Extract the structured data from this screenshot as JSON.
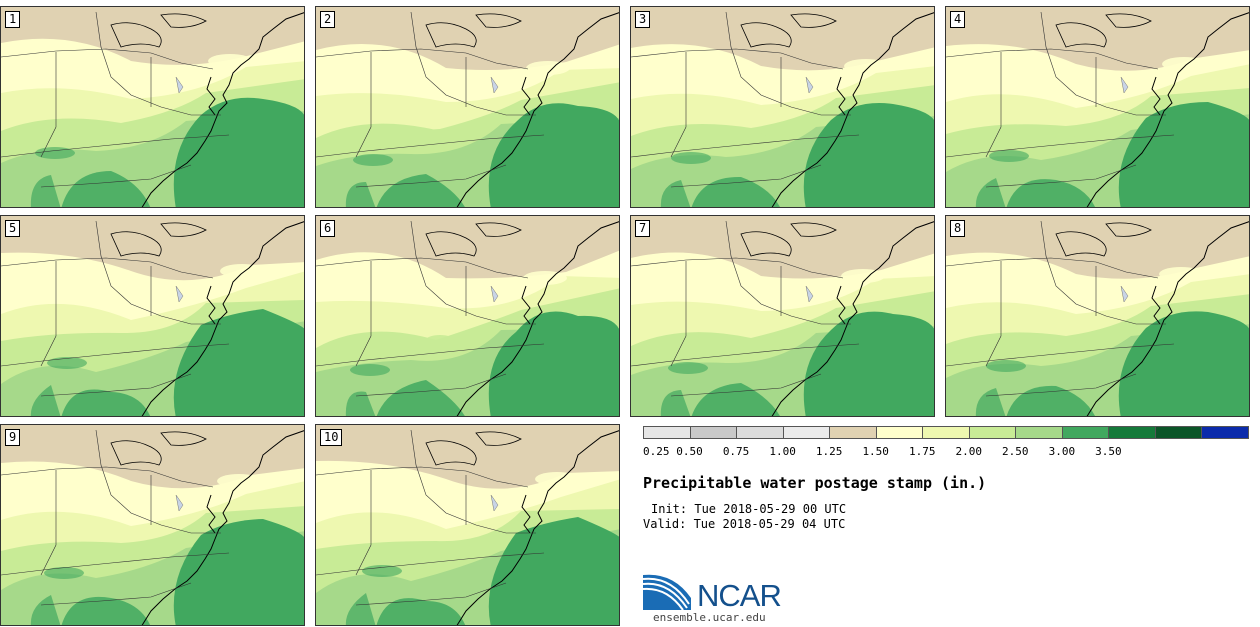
{
  "panels": [
    {
      "label": "1"
    },
    {
      "label": "2"
    },
    {
      "label": "3"
    },
    {
      "label": "4"
    },
    {
      "label": "5"
    },
    {
      "label": "6"
    },
    {
      "label": "7"
    },
    {
      "label": "8"
    },
    {
      "label": "9"
    },
    {
      "label": "10"
    }
  ],
  "legend": {
    "ticks": [
      "0.25",
      "0.50",
      "0.75",
      "1.00",
      "1.25",
      "1.50",
      "1.75",
      "2.00",
      "2.50",
      "3.00",
      "3.50"
    ],
    "colors": [
      "#e6e6e6",
      "#c9c9c9",
      "#dcdcdc",
      "#ebebeb",
      "#e0d2b2",
      "#ffffcc",
      "#eef8b0",
      "#c8eb96",
      "#a6d98a",
      "#41a85f",
      "#157a3a",
      "#0b5528",
      "#0b2bab"
    ]
  },
  "title": "Precipitable water postage stamp (in.)",
  "init": "Init: Tue 2018-05-29 00 UTC",
  "valid": "Valid: Tue 2018-05-29 04 UTC",
  "logo_text": "NCAR",
  "site": "ensemble.ucar.edu"
}
